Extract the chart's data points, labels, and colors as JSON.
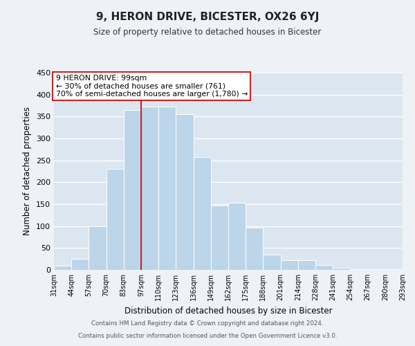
{
  "title": "9, HERON DRIVE, BICESTER, OX26 6YJ",
  "subtitle": "Size of property relative to detached houses in Bicester",
  "xlabel": "Distribution of detached houses by size in Bicester",
  "ylabel": "Number of detached properties",
  "bin_labels": [
    "31sqm",
    "44sqm",
    "57sqm",
    "70sqm",
    "83sqm",
    "97sqm",
    "110sqm",
    "123sqm",
    "136sqm",
    "149sqm",
    "162sqm",
    "175sqm",
    "188sqm",
    "201sqm",
    "214sqm",
    "228sqm",
    "241sqm",
    "254sqm",
    "267sqm",
    "280sqm",
    "293sqm"
  ],
  "bar_heights": [
    10,
    25,
    100,
    230,
    365,
    372,
    372,
    355,
    258,
    147,
    153,
    97,
    35,
    22,
    22,
    11,
    4,
    2,
    1,
    1
  ],
  "bar_color": "#bdd5e8",
  "bar_edge_color": "#ffffff",
  "property_line_color": "#cc2222",
  "annotation_line1": "9 HERON DRIVE: 99sqm",
  "annotation_line2": "← 30% of detached houses are smaller (761)",
  "annotation_line3": "70% of semi-detached houses are larger (1,780) →",
  "annotation_box_facecolor": "#ffffff",
  "annotation_box_edgecolor": "#cc2222",
  "ylim": [
    0,
    450
  ],
  "yticks": [
    0,
    50,
    100,
    150,
    200,
    250,
    300,
    350,
    400,
    450
  ],
  "footer_line1": "Contains HM Land Registry data © Crown copyright and database right 2024.",
  "footer_line2": "Contains public sector information licensed under the Open Government Licence v3.0.",
  "background_color": "#eef2f7",
  "plot_background_color": "#dce6f0",
  "grid_color": "#ffffff"
}
